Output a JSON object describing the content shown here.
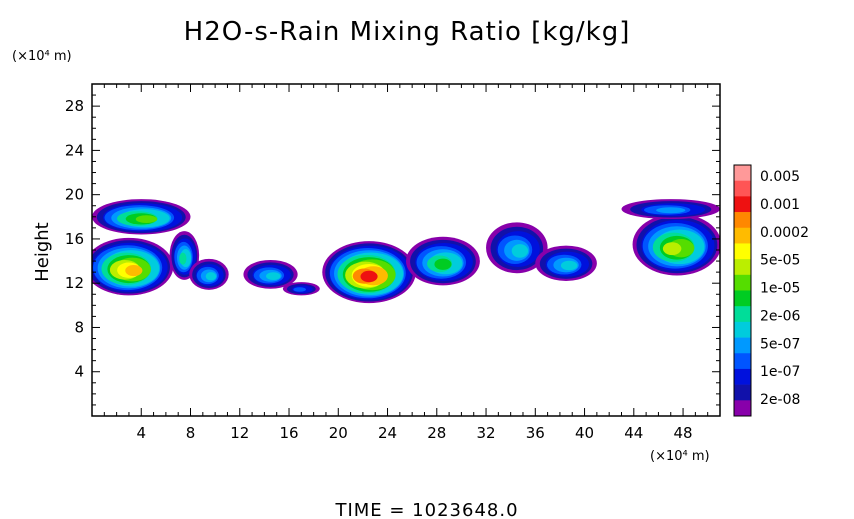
{
  "chart_data": {
    "type": "heatmap",
    "title": "H2O-s-Rain Mixing Ratio [kg/kg]",
    "ylabel": "Height",
    "y_unit": "(×10⁴ m)",
    "x_unit": "(×10⁴ m)",
    "footer": "TIME  =  1023648.0",
    "xlim": [
      0,
      51
    ],
    "ylim": [
      0,
      30
    ],
    "xticks": [
      4,
      8,
      12,
      16,
      20,
      24,
      28,
      32,
      36,
      40,
      44,
      48
    ],
    "yticks": [
      4,
      8,
      12,
      16,
      20,
      24,
      28
    ],
    "colorbar": {
      "labels": [
        "0.005",
        "0.001",
        "0.0002",
        "5e-05",
        "1e-05",
        "2e-06",
        "5e-07",
        "1e-07",
        "2e-08"
      ],
      "colors": [
        "#ff9999",
        "#ff5555",
        "#ee1111",
        "#ff8800",
        "#ffbb00",
        "#ffff00",
        "#bbee00",
        "#55dd00",
        "#00cc22",
        "#00dd99",
        "#00ccdd",
        "#0099ff",
        "#0055ff",
        "#0011dd",
        "#1111aa",
        "#8800aa"
      ]
    },
    "features": [
      {
        "x": 3.0,
        "y": 13.5,
        "rx": 3.6,
        "ry": 2.6,
        "level": 12
      },
      {
        "x": 4.0,
        "y": 18.0,
        "rx": 4.0,
        "ry": 1.6,
        "level": 9
      },
      {
        "x": 7.5,
        "y": 14.5,
        "rx": 1.2,
        "ry": 2.2,
        "level": 7
      },
      {
        "x": 9.5,
        "y": 12.8,
        "rx": 1.6,
        "ry": 1.4,
        "level": 6
      },
      {
        "x": 14.5,
        "y": 12.8,
        "rx": 2.2,
        "ry": 1.3,
        "level": 6
      },
      {
        "x": 17.0,
        "y": 11.5,
        "rx": 1.5,
        "ry": 0.6,
        "level": 4
      },
      {
        "x": 22.5,
        "y": 13.0,
        "rx": 3.8,
        "ry": 2.8,
        "level": 14
      },
      {
        "x": 28.5,
        "y": 14.0,
        "rx": 3.0,
        "ry": 2.2,
        "level": 8
      },
      {
        "x": 34.5,
        "y": 15.2,
        "rx": 2.5,
        "ry": 2.3,
        "level": 6
      },
      {
        "x": 38.5,
        "y": 13.8,
        "rx": 2.5,
        "ry": 1.6,
        "level": 6
      },
      {
        "x": 47.5,
        "y": 15.5,
        "rx": 3.6,
        "ry": 2.8,
        "level": 10
      },
      {
        "x": 47.0,
        "y": 18.7,
        "rx": 4.0,
        "ry": 0.9,
        "level": 5
      }
    ]
  }
}
